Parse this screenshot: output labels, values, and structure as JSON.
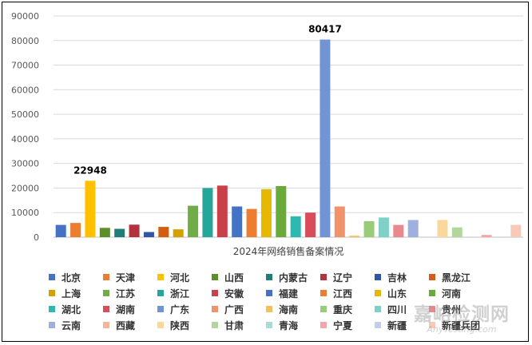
{
  "chart_data": {
    "type": "bar",
    "title": "",
    "xlabel": "2024年网络销售备案情况",
    "ylabel": "",
    "ylim": [
      0,
      90000
    ],
    "yticks": [
      0,
      10000,
      20000,
      30000,
      40000,
      50000,
      60000,
      70000,
      80000,
      90000
    ],
    "grid": true,
    "legend_position": "bottom",
    "categories": [
      "北京",
      "天津",
      "河北",
      "山西",
      "内蒙古",
      "辽宁",
      "吉林",
      "黑龙江",
      "上海",
      "江苏",
      "浙江",
      "安徽",
      "福建",
      "江西",
      "山东",
      "河南",
      "湖北",
      "湖南",
      "广东",
      "广西",
      "海南",
      "重庆",
      "四川",
      "贵州",
      "云南",
      "西藏",
      "陕西",
      "甘肃",
      "青海",
      "宁夏",
      "新疆",
      "新疆兵团"
    ],
    "values": [
      5000,
      5800,
      22948,
      3800,
      3400,
      5100,
      2100,
      4200,
      3200,
      12800,
      20000,
      21000,
      12500,
      11500,
      19500,
      20800,
      8500,
      10000,
      80417,
      12500,
      600,
      6500,
      8000,
      5000,
      7000,
      0,
      7000,
      4000,
      0,
      900,
      0,
      5000
    ],
    "colors": [
      "#4472c4",
      "#ed7d31",
      "#ffc000",
      "#5a8f29",
      "#1f7f78",
      "#b2323d",
      "#2f55a4",
      "#d45d14",
      "#d4a100",
      "#70ad47",
      "#26a69a",
      "#c9404a",
      "#4472c4",
      "#ed7d31",
      "#e6b800",
      "#6aaa3a",
      "#2fb8b0",
      "#d94d5b",
      "#7294d4",
      "#f0936a",
      "#f5c05a",
      "#9acb78",
      "#7fd1c8",
      "#e8888f",
      "#9fb0de",
      "#f4b59a",
      "#fad79a",
      "#b3d69d",
      "#a8ddd7",
      "#f2a6ab",
      "#c3cde9",
      "#f8c9b6"
    ],
    "data_labels": [
      {
        "category": "河北",
        "text": "22948"
      },
      {
        "category": "广东",
        "text": "80417"
      }
    ]
  },
  "watermark": {
    "main": "嘉峪检测网",
    "sub": "AnyTesting.com"
  }
}
